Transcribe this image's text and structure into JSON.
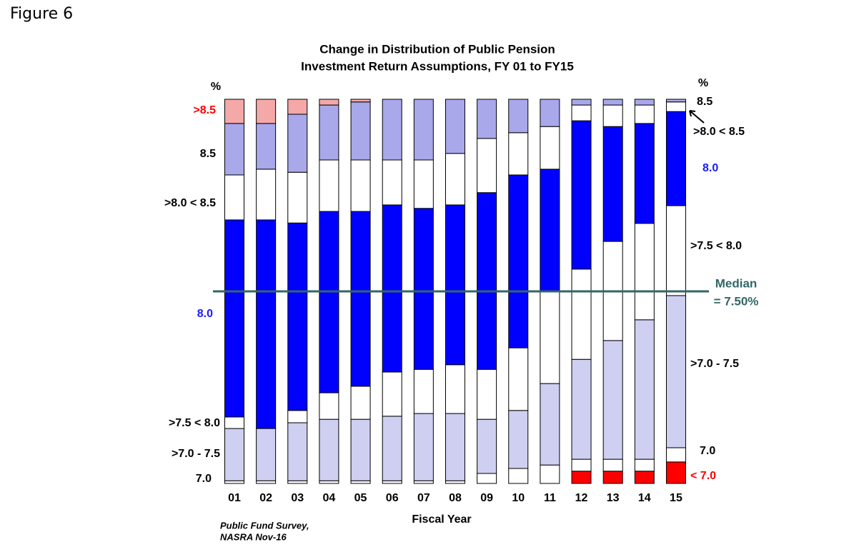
{
  "figure_label": "Figure 6",
  "chart_data": {
    "type": "stacked_bar",
    "title": [
      "Change in Distribution of Public Pension",
      "Investment Return Assumptions, FY 01 to FY15"
    ],
    "xlabel": "Fiscal Year",
    "ylabel": "%",
    "source": [
      "Public Fund Survey,",
      "NASRA Nov-16"
    ],
    "annotation": [
      "Median",
      "= 7.50%"
    ],
    "categories": [
      "01",
      "02",
      "03",
      "04",
      "05",
      "06",
      "07",
      "08",
      "09",
      "10",
      "11",
      "12",
      "13",
      "14",
      "15"
    ],
    "ylim": [
      0,
      100
    ],
    "series": [
      {
        "name": "< 7.0",
        "color": "#ff0000",
        "values": [
          0,
          0,
          0,
          0,
          0,
          0,
          0,
          0,
          0,
          0,
          0,
          3.2,
          3.2,
          3.2,
          5.6
        ]
      },
      {
        "name": "7.0",
        "color": "#ffffff",
        "values": [
          0.7,
          0.7,
          0.7,
          0.7,
          0.7,
          0.7,
          0.7,
          0.7,
          2.6,
          3.9,
          4.8,
          3.1,
          3.1,
          3.1,
          3.7
        ]
      },
      {
        "name": ">7.0 - 7.5",
        "color": "#cfcff2",
        "values": [
          13.6,
          13.6,
          15.1,
          16.0,
          16.0,
          16.8,
          17.5,
          17.5,
          14.1,
          15.1,
          21.2,
          26.0,
          30.9,
          36.3,
          39.6
        ]
      },
      {
        "name": ">7.5 < 8.0",
        "color": "#ffffff",
        "values": [
          3.0,
          0,
          3.2,
          6.9,
          8.6,
          11.5,
          11.5,
          12.7,
          13.0,
          16.3,
          24.0,
          23.5,
          25.8,
          25.1,
          23.4
        ]
      },
      {
        "name": "8.0",
        "color": "#0000ff",
        "values": [
          51.3,
          54.3,
          48.8,
          47.2,
          45.5,
          43.5,
          41.9,
          41.6,
          46.0,
          45.0,
          31.8,
          38.6,
          29.9,
          26.0,
          24.5
        ]
      },
      {
        "name": ">8.0 < 8.5",
        "color": "#ffffff",
        "values": [
          11.7,
          13.2,
          13.2,
          13.4,
          13.4,
          11.7,
          12.6,
          13.4,
          14.1,
          11.0,
          11.1,
          4.1,
          5.6,
          4.8,
          2.5
        ]
      },
      {
        "name": "8.5",
        "color": "#a8a8ea",
        "values": [
          13.4,
          11.9,
          15.1,
          14.3,
          15.1,
          15.8,
          15.8,
          14.1,
          10.2,
          8.7,
          7.1,
          1.5,
          1.5,
          1.5,
          0.7
        ]
      },
      {
        "name": ">8.5",
        "color": "#f4a8a8",
        "values": [
          6.3,
          6.3,
          3.9,
          1.5,
          0.7,
          0,
          0,
          0,
          0,
          0,
          0,
          0,
          0,
          0,
          0
        ]
      }
    ]
  }
}
